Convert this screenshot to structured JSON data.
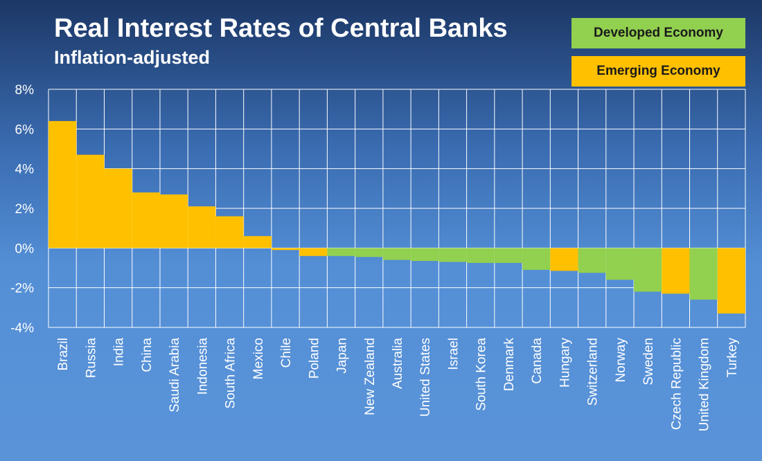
{
  "colors": {
    "developed": "#92d050",
    "emerging": "#ffc000",
    "gridline": "#ffffff",
    "text": "#ffffff"
  },
  "legend": {
    "developed_label": "Developed Economy",
    "emerging_label": "Emerging Economy"
  },
  "chart_data": {
    "type": "bar",
    "title": "Real Interest Rates of Central Banks",
    "subtitle": "Inflation-adjusted",
    "xlabel": "",
    "ylabel": "",
    "ylim": [
      -4,
      8
    ],
    "y_ticks": [
      8,
      6,
      4,
      2,
      0,
      -2,
      -4
    ],
    "y_tick_labels": [
      "8%",
      "6%",
      "4%",
      "2%",
      "0%",
      "-2%",
      "-4%"
    ],
    "grid": true,
    "legend_position": "top-right",
    "categories": [
      "Brazil",
      "Russia",
      "India",
      "China",
      "Saudi Arabia",
      "Indonesia",
      "South Africa",
      "Mexico",
      "Chile",
      "Poland",
      "Japan",
      "New Zealand",
      "Australia",
      "United States",
      "Israel",
      "South Korea",
      "Denmark",
      "Canada",
      "Hungary",
      "Switzerland",
      "Norway",
      "Sweden",
      "Czech Republic",
      "United Kingdom",
      "Turkey"
    ],
    "values": [
      6.4,
      4.7,
      4.0,
      2.8,
      2.7,
      2.1,
      1.6,
      0.6,
      -0.1,
      -0.4,
      -0.4,
      -0.45,
      -0.6,
      -0.65,
      -0.7,
      -0.75,
      -0.75,
      -1.1,
      -1.15,
      -1.25,
      -1.6,
      -2.2,
      -2.3,
      -2.6,
      -3.3
    ],
    "economy": [
      "Emerging",
      "Emerging",
      "Emerging",
      "Emerging",
      "Emerging",
      "Emerging",
      "Emerging",
      "Emerging",
      "Emerging",
      "Emerging",
      "Developed",
      "Developed",
      "Developed",
      "Developed",
      "Developed",
      "Developed",
      "Developed",
      "Developed",
      "Emerging",
      "Developed",
      "Developed",
      "Developed",
      "Emerging",
      "Developed",
      "Emerging"
    ]
  }
}
